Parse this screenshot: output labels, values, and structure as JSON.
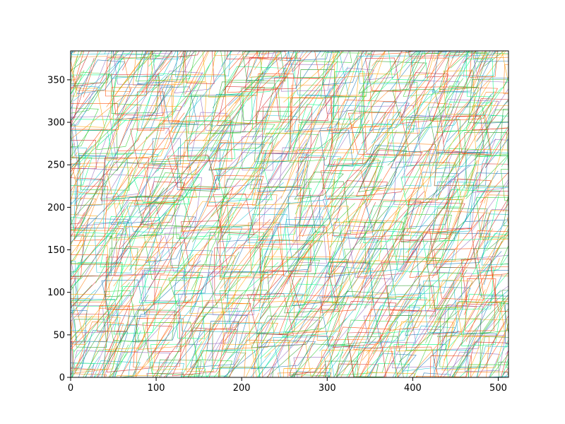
{
  "chart_data": {
    "type": "line",
    "title": "",
    "xlabel": "",
    "ylabel": "",
    "xlim": [
      0,
      512
    ],
    "ylim": [
      0,
      384
    ],
    "x_ticks": [
      0,
      100,
      200,
      300,
      400,
      500
    ],
    "y_ticks": [
      0,
      50,
      100,
      150,
      200,
      250,
      300,
      350
    ],
    "x_tick_labels": [
      "0",
      "100",
      "200",
      "300",
      "400",
      "500"
    ],
    "y_tick_labels": [
      "0",
      "50",
      "100",
      "150",
      "200",
      "250",
      "300",
      "350"
    ],
    "grid": false,
    "legend": "none",
    "description_of_marks": "dense overlapping thin multicolored polylines (cyan, green, orange, red, purple, blue) forming a repeating tiled lattice of rectangles and diagonal strokes",
    "palette": [
      "#1f77b4",
      "#ff7f0e",
      "#2ca02c",
      "#d62728",
      "#9467bd",
      "#17becf",
      "#00ff7f",
      "#ff4500",
      "#ffa500",
      "#32cd32"
    ],
    "tile_spacing": [
      42.67,
      42.67
    ]
  }
}
